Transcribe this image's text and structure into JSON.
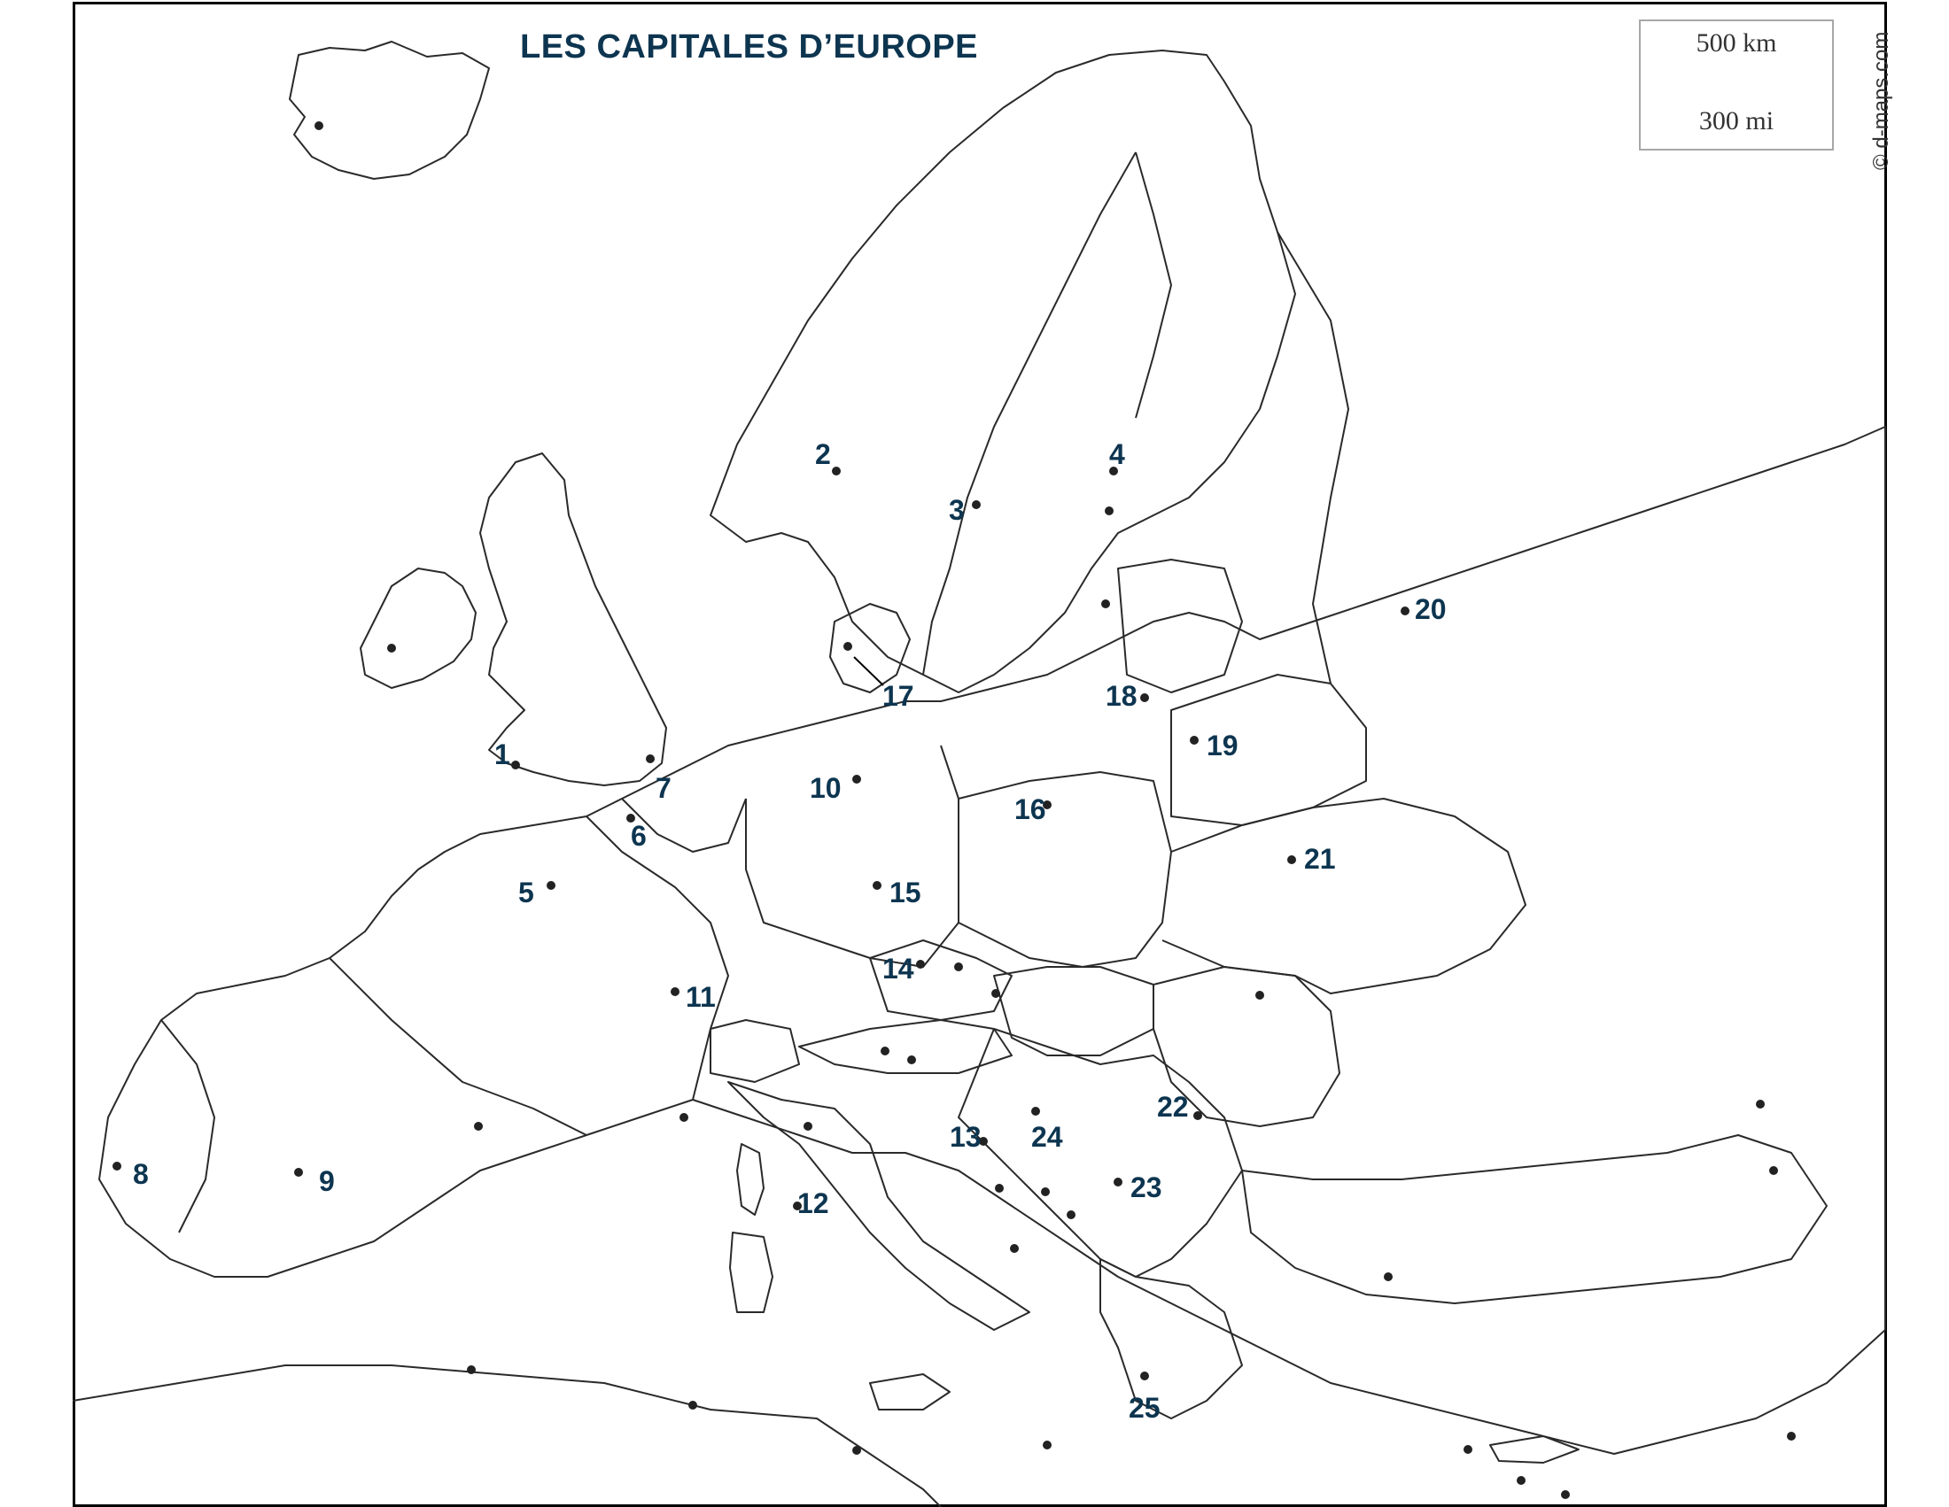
{
  "map": {
    "title": "LES CAPITALES D’EUROPE",
    "attribution": "© d-maps.com",
    "scale": {
      "km_label": "500 km",
      "mi_label": "300 mi"
    },
    "colors": {
      "label": "#0d3550",
      "border": "#2a2a2a",
      "capital_dot": "#222222",
      "frame": "#000000"
    },
    "numbered_capitals": [
      {
        "label": "1"
      },
      {
        "label": "2"
      },
      {
        "label": "3"
      },
      {
        "label": "4"
      },
      {
        "label": "5"
      },
      {
        "label": "6"
      },
      {
        "label": "7"
      },
      {
        "label": "8"
      },
      {
        "label": "9"
      },
      {
        "label": "10"
      },
      {
        "label": "11"
      },
      {
        "label": "12"
      },
      {
        "label": "13"
      },
      {
        "label": "14"
      },
      {
        "label": "15"
      },
      {
        "label": "16"
      },
      {
        "label": "17"
      },
      {
        "label": "18"
      },
      {
        "label": "19"
      },
      {
        "label": "20"
      },
      {
        "label": "21"
      },
      {
        "label": "22"
      },
      {
        "label": "23"
      },
      {
        "label": "24"
      },
      {
        "label": "25"
      }
    ]
  }
}
